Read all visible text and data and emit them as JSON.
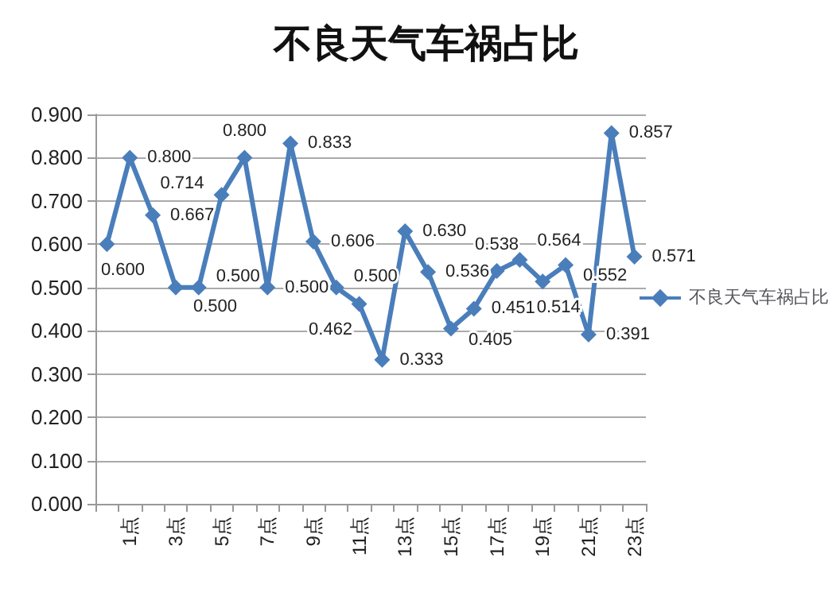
{
  "chart_data": {
    "type": "line",
    "title": "不良天气车祸占比",
    "categories": [
      null,
      "1点",
      null,
      "3点",
      null,
      "5点",
      null,
      "7点",
      null,
      "9点",
      null,
      "11点",
      null,
      "13点",
      null,
      "15点",
      null,
      "17点",
      null,
      "19点",
      null,
      "21点",
      null,
      "23点"
    ],
    "series": [
      {
        "name": "不良天气车祸占比",
        "color": "#4a7ebb",
        "values": [
          0.6,
          0.8,
          0.667,
          0.5,
          0.5,
          0.714,
          0.8,
          0.5,
          0.833,
          0.606,
          0.5,
          0.462,
          0.333,
          0.63,
          0.536,
          0.405,
          0.451,
          0.538,
          0.564,
          0.514,
          0.552,
          0.391,
          0.857,
          0.571
        ],
        "value_labels": [
          "0.600",
          "0.800",
          "0.667",
          "0.500",
          "0.500",
          "0.714",
          "0.800",
          "0.500",
          "0.833",
          "0.606",
          "0.500",
          "0.462",
          "0.333",
          "0.630",
          "0.536",
          "0.405",
          "0.451",
          "0.538",
          "0.564",
          "0.514",
          "0.552",
          "0.391",
          "0.857",
          "0.571"
        ]
      }
    ],
    "ylim": [
      0,
      0.9
    ],
    "yticks": [
      {
        "value": 0,
        "label": "0.000"
      },
      {
        "value": 0.1,
        "label": "0.100"
      },
      {
        "value": 0.2,
        "label": "0.200"
      },
      {
        "value": 0.3,
        "label": "0.300"
      },
      {
        "value": 0.4,
        "label": "0.400"
      },
      {
        "value": 0.5,
        "label": "0.500"
      },
      {
        "value": 0.6,
        "label": "0.600"
      },
      {
        "value": 0.7,
        "label": "0.700"
      },
      {
        "value": 0.8,
        "label": "0.800"
      },
      {
        "value": 0.9,
        "label": "0.900"
      }
    ],
    "grid": "y",
    "legend": "right",
    "marker": "diamond",
    "line_style": "solid"
  }
}
